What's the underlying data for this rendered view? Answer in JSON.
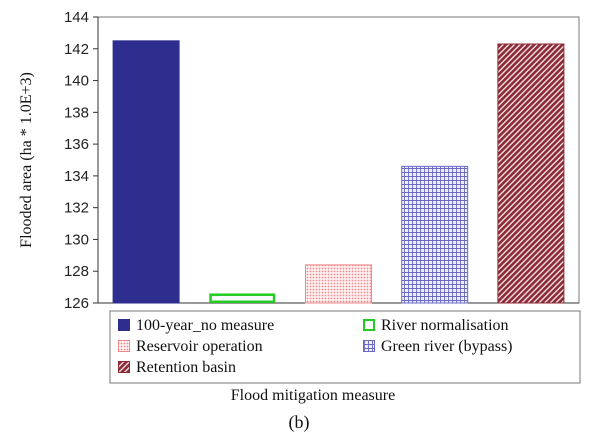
{
  "chart_data": {
    "type": "bar",
    "ylabel": "Flooded area (ha * 1.0E+3)",
    "xlabel": "Flood mitigation measure",
    "caption": "(b)",
    "ylim": [
      126,
      144
    ],
    "yticks": [
      126,
      128,
      130,
      132,
      134,
      136,
      138,
      140,
      142,
      144
    ],
    "grid": false,
    "legend_position": "bottom",
    "categories": [
      "100-year_no measure",
      "River normalisation",
      "Reservoir operation",
      "Green river (bypass)",
      "Retention basin"
    ],
    "values": [
      142.5,
      126.6,
      128.4,
      134.6,
      142.3
    ],
    "colors": {
      "100-year_no measure": "#2e2e8e",
      "River normalisation": "#22cc22",
      "Reservoir operation": "#f0a0a0",
      "Green river (bypass)": "#7a7ac8",
      "Retention basin": "#8b2a36"
    },
    "patterns": {
      "100-year_no measure": "solid",
      "River normalisation": "outline",
      "Reservoir operation": "fine-dots",
      "Green river (bypass)": "grid",
      "Retention basin": "diagonal-hatch"
    }
  }
}
